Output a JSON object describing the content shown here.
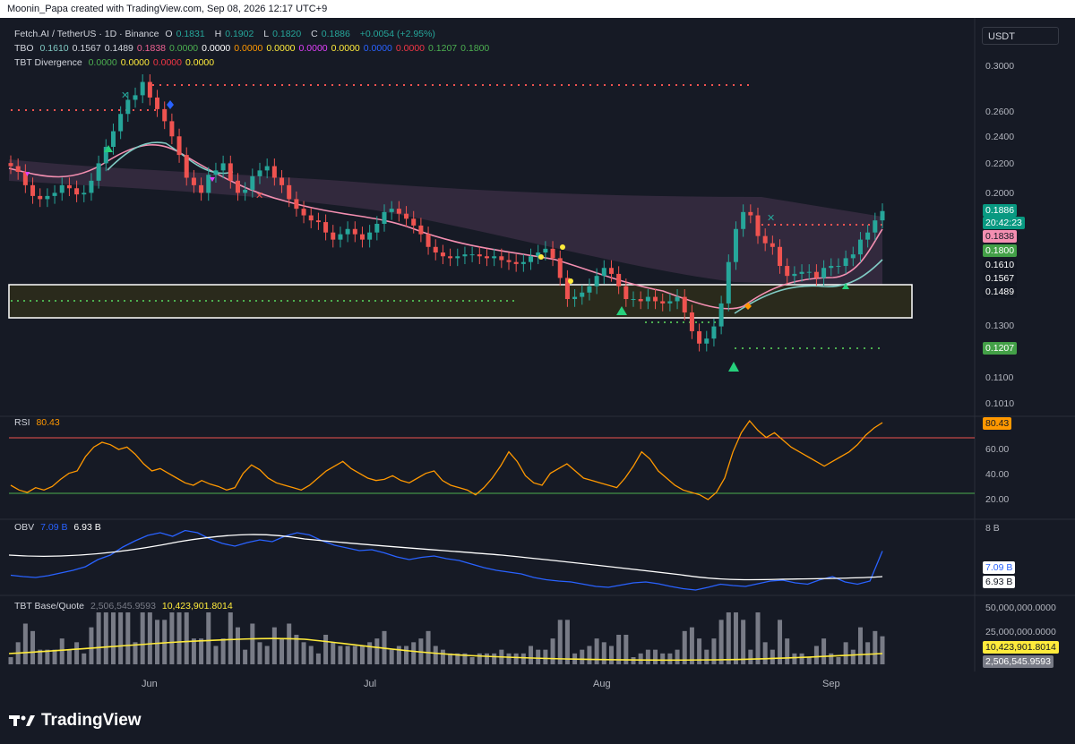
{
  "header": {
    "text": "Moonin_Papa created with TradingView.com, Sep 08, 2026 12:17 UTC+9"
  },
  "symbol": {
    "name": "Fetch.AI / TetherUS · 1D · Binance",
    "o_label": "O",
    "o": "0.1831",
    "h_label": "H",
    "h": "0.1902",
    "l_label": "L",
    "l": "0.1820",
    "c_label": "C",
    "c": "0.1886",
    "change": "+0.0054 (+2.95%)"
  },
  "tbo": {
    "label": "TBO",
    "values": [
      "0.1610",
      "0.1567",
      "0.1489",
      "0.1838",
      "0.0000",
      "0.0000",
      "0.0000",
      "0.0000",
      "0.0000",
      "0.0000",
      "0.0000",
      "0.0000",
      "0.1207",
      "0.1800"
    ],
    "colors": [
      "#80cbc4",
      "#d1d4dc",
      "#d1d4dc",
      "#f06292",
      "#4caf50",
      "#ffffff",
      "#ff9800",
      "#ffeb3b",
      "#e040fb",
      "#ffeb3b",
      "#2962ff",
      "#f23645",
      "#4caf50",
      "#4caf50"
    ]
  },
  "tbt_divergence": {
    "label": "TBT Divergence",
    "values": [
      "0.0000",
      "0.0000",
      "0.0000",
      "0.0000"
    ],
    "colors": [
      "#4caf50",
      "#ffeb3b",
      "#f23645",
      "#ffeb3b"
    ]
  },
  "currency_button": "USDT",
  "price_axis": [
    "0.3000",
    "0.2600",
    "0.2400",
    "0.2200",
    "0.2000",
    "0.1300",
    "0.1100",
    "0.1010"
  ],
  "price_tags": [
    {
      "text": "0.1886",
      "bg": "#089981",
      "fg": "#ffffff"
    },
    {
      "text": "20:42:23",
      "bg": "#089981",
      "fg": "#ffffff"
    },
    {
      "text": "0.1838",
      "bg": "#f48fb1",
      "fg": "#131722"
    },
    {
      "text": "0.1800",
      "bg": "#43a047",
      "fg": "#ffffff"
    },
    {
      "text": "0.1610",
      "bg": "#131722",
      "fg": "#ffffff"
    },
    {
      "text": "0.1567",
      "bg": "#131722",
      "fg": "#ffffff"
    },
    {
      "text": "0.1489",
      "bg": "#131722",
      "fg": "#ffffff"
    },
    {
      "text": "0.1207",
      "bg": "#43a047",
      "fg": "#ffffff"
    }
  ],
  "rsi": {
    "label": "RSI",
    "value": "80.43",
    "axis": [
      "60.00",
      "40.00",
      "20.00"
    ],
    "tag": "80.43"
  },
  "obv": {
    "label": "OBV",
    "value1": "7.09 B",
    "value2": "6.93 B",
    "axis": "8 B",
    "tag1": "7.09 B",
    "tag2": "6.93 B"
  },
  "tbt_bq": {
    "label": "TBT Base/Quote",
    "value1": "2,506,545.9593",
    "value2": "10,423,901.8014",
    "axis": [
      "50,000,000.0000",
      "25,000,000.0000"
    ],
    "tag1": "10,423,901.8014",
    "tag2": "2,506,545.9593"
  },
  "time_axis": [
    "Jun",
    "Jul",
    "Aug",
    "Sep"
  ],
  "footer": {
    "brand": "TradingView"
  },
  "colors": {
    "up": "#26a69a",
    "down": "#ef5350",
    "rsi": "#ff9800",
    "obv": "#2962ff",
    "ema_pink": "#f48fb1",
    "ema_teal": "#80cbc4"
  },
  "chart_data": {
    "type": "candlestick",
    "symbol": "Fetch.AI / TetherUS",
    "interval": "1D",
    "x_ticks": [
      "Jun",
      "Jul",
      "Aug",
      "Sep"
    ],
    "y_ticks": [
      0.3,
      0.26,
      0.24,
      0.22,
      0.2,
      0.13,
      0.11,
      0.101
    ],
    "closes": [
      0.218,
      0.214,
      0.205,
      0.198,
      0.196,
      0.198,
      0.2,
      0.205,
      0.203,
      0.199,
      0.2,
      0.208,
      0.22,
      0.232,
      0.244,
      0.258,
      0.27,
      0.274,
      0.286,
      0.272,
      0.262,
      0.252,
      0.24,
      0.226,
      0.21,
      0.205,
      0.2,
      0.212,
      0.215,
      0.22,
      0.208,
      0.2,
      0.202,
      0.211,
      0.215,
      0.218,
      0.21,
      0.205,
      0.196,
      0.19,
      0.186,
      0.183,
      0.182,
      0.176,
      0.172,
      0.175,
      0.178,
      0.175,
      0.172,
      0.176,
      0.181,
      0.188,
      0.19,
      0.187,
      0.184,
      0.18,
      0.175,
      0.168,
      0.165,
      0.163,
      0.162,
      0.163,
      0.164,
      0.164,
      0.163,
      0.162,
      0.163,
      0.161,
      0.16,
      0.159,
      0.16,
      0.163,
      0.165,
      0.167,
      0.162,
      0.152,
      0.142,
      0.143,
      0.145,
      0.148,
      0.153,
      0.157,
      0.154,
      0.148,
      0.142,
      0.142,
      0.141,
      0.143,
      0.141,
      0.14,
      0.141,
      0.143,
      0.136,
      0.128,
      0.123,
      0.125,
      0.13,
      0.14,
      0.16,
      0.178,
      0.188,
      0.186,
      0.174,
      0.17,
      0.168,
      0.158,
      0.153,
      0.154,
      0.155,
      0.155,
      0.152,
      0.157,
      0.158,
      0.158,
      0.162,
      0.164,
      0.172,
      0.176,
      0.183,
      0.1886
    ],
    "rsi": [
      28,
      24,
      22,
      26,
      24,
      27,
      33,
      38,
      40,
      52,
      60,
      64,
      62,
      58,
      60,
      54,
      46,
      40,
      42,
      38,
      34,
      30,
      28,
      32,
      29,
      27,
      24,
      26,
      38,
      45,
      41,
      34,
      30,
      28,
      26,
      24,
      28,
      34,
      40,
      44,
      48,
      42,
      38,
      34,
      32,
      33,
      36,
      32,
      30,
      34,
      38,
      40,
      32,
      28,
      26,
      24,
      20,
      26,
      34,
      44,
      56,
      48,
      36,
      30,
      28,
      38,
      42,
      46,
      40,
      34,
      32,
      30,
      28,
      26,
      34,
      44,
      56,
      50,
      40,
      34,
      28,
      24,
      22,
      20,
      16,
      22,
      34,
      56,
      72,
      82,
      74,
      68,
      72,
      66,
      60,
      56,
      52,
      48,
      44,
      48,
      52,
      56,
      62,
      70,
      76,
      80.43
    ],
    "obv_billion": [
      6.55,
      6.52,
      6.5,
      6.54,
      6.6,
      6.66,
      6.74,
      6.9,
      7.0,
      7.18,
      7.32,
      7.44,
      7.5,
      7.42,
      7.55,
      7.5,
      7.36,
      7.26,
      7.2,
      7.28,
      7.34,
      7.3,
      7.42,
      7.5,
      7.45,
      7.32,
      7.22,
      7.16,
      7.1,
      7.12,
      7.05,
      6.96,
      6.9,
      6.95,
      6.98,
      6.92,
      6.88,
      6.8,
      6.72,
      6.66,
      6.62,
      6.58,
      6.5,
      6.45,
      6.42,
      6.4,
      6.35,
      6.3,
      6.28,
      6.33,
      6.38,
      6.4,
      6.36,
      6.3,
      6.25,
      6.22,
      6.28,
      6.35,
      6.32,
      6.3,
      6.36,
      6.42,
      6.44,
      6.38,
      6.35,
      6.45,
      6.52,
      6.4,
      6.35,
      6.42,
      7.09
    ]
  }
}
